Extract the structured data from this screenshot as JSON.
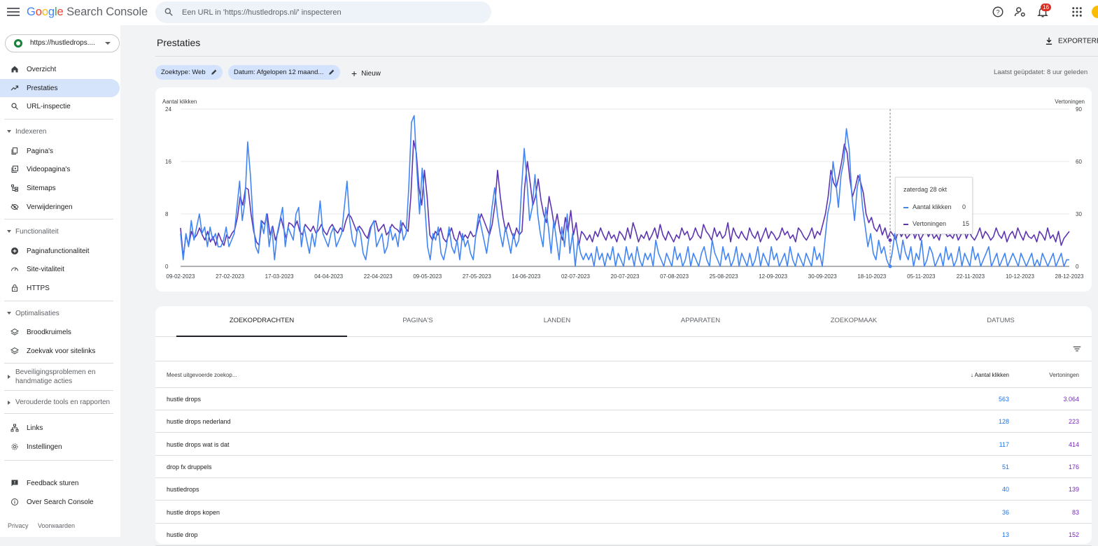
{
  "header": {
    "logo_google": "Google",
    "logo_product": "Search Console",
    "search_placeholder": "Een URL in 'https://hustledrops.nl/' inspecteren",
    "notification_count": "16"
  },
  "sidebar": {
    "property": "https://hustledrops....",
    "top_items": [
      {
        "label": "Overzicht",
        "icon": "home-icon"
      },
      {
        "label": "Prestaties",
        "icon": "trending-up-icon",
        "active": true
      },
      {
        "label": "URL-inspectie",
        "icon": "search-icon"
      }
    ],
    "sections": [
      {
        "title": "Indexeren",
        "items": [
          "Pagina's",
          "Videopagina's",
          "Sitemaps",
          "Verwijderingen"
        ]
      },
      {
        "title": "Functionaliteit",
        "items": [
          "Paginafunctionaliteit",
          "Site-vitaliteit",
          "HTTPS"
        ]
      },
      {
        "title": "Optimalisaties",
        "items": [
          "Broodkruimels",
          "Zoekvak voor sitelinks"
        ]
      }
    ],
    "collapsed_sections": [
      "Beveiligingsproblemen en handmatige acties",
      "Verouderde tools en rapporten"
    ],
    "bottom_items": [
      "Links",
      "Instellingen"
    ],
    "footer_items": [
      "Feedback sturen",
      "Over Search Console"
    ],
    "footer_links": [
      "Privacy",
      "Voorwaarden"
    ]
  },
  "main": {
    "title": "Prestaties",
    "export_label": "EXPORTEREN",
    "filters": [
      "Zoektype: Web",
      "Datum: Afgelopen 12 maand..."
    ],
    "new_label": "Nieuw",
    "updated": "Laatst geüpdatet: 8 uur geleden"
  },
  "chart_data": {
    "type": "line",
    "left_axis_label": "Aantal klikken",
    "right_axis_label": "Vertoningen",
    "left_ticks": [
      0,
      8,
      16,
      24
    ],
    "right_ticks": [
      0,
      30,
      60,
      90
    ],
    "ylim_left": [
      0,
      24
    ],
    "ylim_right": [
      0,
      90
    ],
    "x_tick_labels": [
      "09-02-2023",
      "27-02-2023",
      "17-03-2023",
      "04-04-2023",
      "22-04-2023",
      "09-05-2023",
      "27-05-2023",
      "14-06-2023",
      "02-07-2023",
      "20-07-2023",
      "07-08-2023",
      "25-08-2023",
      "12-09-2023",
      "30-09-2023",
      "18-10-2023",
      "05-11-2023",
      "22-11-2023",
      "10-12-2023",
      "28-12-2023"
    ],
    "series": [
      {
        "name": "Aantal klikken",
        "axis": "left",
        "color": "#4285f4",
        "values": [
          5,
          1,
          5,
          3,
          7,
          4,
          6,
          8,
          5,
          6,
          3,
          6,
          4,
          5,
          3,
          3,
          4,
          6,
          3,
          4,
          5,
          9,
          13,
          7,
          10,
          19,
          14,
          7,
          3,
          2,
          7,
          5,
          8,
          3,
          6,
          1,
          5,
          7,
          9,
          3,
          6,
          5,
          4,
          8,
          9,
          3,
          6,
          4,
          2,
          5,
          3,
          6,
          10,
          5,
          4,
          3,
          5,
          6,
          3,
          4,
          5,
          9,
          13,
          7,
          4,
          3,
          6,
          5,
          2,
          1,
          4,
          6,
          7,
          3,
          4,
          5,
          2,
          3,
          6,
          4,
          5,
          3,
          7,
          4,
          5,
          12,
          22,
          23,
          15,
          8,
          15,
          9,
          3,
          1,
          5,
          4,
          6,
          2,
          1,
          3,
          6,
          3,
          2,
          4,
          1,
          5,
          3,
          4,
          2,
          1,
          5,
          8,
          6,
          4,
          2,
          5,
          9,
          12,
          8,
          5,
          3,
          6,
          4,
          2,
          5,
          3,
          4,
          12,
          18,
          13,
          7,
          9,
          14,
          8,
          5,
          3,
          9,
          6,
          2,
          7,
          4,
          1,
          6,
          3,
          8,
          2,
          5,
          0,
          4,
          2,
          1,
          2,
          1,
          2,
          0,
          3,
          1,
          2,
          0,
          2,
          1,
          3,
          0,
          2,
          1,
          0,
          3,
          1,
          2,
          0,
          3,
          1,
          0,
          2,
          1,
          2,
          0,
          4,
          2,
          1,
          0,
          2,
          1,
          0,
          3,
          1,
          2,
          0,
          1,
          3,
          0,
          2,
          1,
          0,
          2,
          3,
          1,
          0,
          4,
          2,
          1,
          0,
          3,
          1,
          2,
          0,
          1,
          3,
          0,
          2,
          1,
          0,
          2,
          0,
          1,
          3,
          0,
          2,
          1,
          0,
          3,
          1,
          2,
          0,
          1,
          2,
          0,
          3,
          1,
          0,
          2,
          1,
          0,
          2,
          1,
          0,
          3,
          1,
          2,
          0,
          4,
          8,
          10,
          16,
          13,
          9,
          14,
          16,
          21,
          18,
          11,
          7,
          12,
          14,
          9,
          6,
          3,
          5,
          2,
          1,
          4,
          2,
          3,
          1,
          0,
          2,
          5,
          3,
          1,
          4,
          2,
          1,
          3,
          0,
          2,
          1,
          4,
          0,
          1,
          3,
          2,
          0,
          1,
          2,
          0,
          3,
          1,
          2,
          0,
          1,
          3,
          0,
          2,
          1,
          0,
          3,
          1,
          2,
          0,
          1,
          2,
          3,
          0,
          1,
          2,
          0,
          1,
          2,
          0,
          1,
          2,
          1,
          0,
          2,
          1,
          0,
          1,
          2,
          0,
          1,
          0,
          2,
          1,
          0,
          1,
          2,
          0,
          1,
          2,
          0,
          1,
          1
        ]
      },
      {
        "name": "Vertoningen",
        "axis": "right",
        "color": "#5e35b1",
        "values": [
          22,
          5,
          18,
          12,
          20,
          16,
          18,
          22,
          18,
          15,
          20,
          14,
          17,
          12,
          19,
          15,
          12,
          18,
          16,
          19,
          21,
          28,
          40,
          35,
          45,
          44,
          30,
          20,
          14,
          12,
          26,
          24,
          30,
          18,
          23,
          15,
          20,
          28,
          22,
          16,
          25,
          24,
          22,
          26,
          20,
          18,
          24,
          22,
          20,
          23,
          19,
          21,
          24,
          20,
          18,
          22,
          24,
          21,
          19,
          22,
          20,
          26,
          30,
          28,
          24,
          20,
          23,
          21,
          18,
          16,
          22,
          25,
          26,
          20,
          22,
          24,
          18,
          20,
          24,
          22,
          21,
          19,
          25,
          22,
          20,
          40,
          72,
          65,
          45,
          35,
          55,
          40,
          18,
          15,
          20,
          18,
          22,
          16,
          14,
          18,
          22,
          16,
          14,
          20,
          15,
          18,
          16,
          20,
          17,
          18,
          25,
          30,
          26,
          22,
          18,
          24,
          35,
          55,
          40,
          28,
          20,
          25,
          20,
          16,
          22,
          18,
          20,
          45,
          60,
          48,
          35,
          40,
          50,
          38,
          30,
          25,
          40,
          32,
          22,
          30,
          20,
          15,
          28,
          20,
          32,
          18,
          25,
          12,
          20,
          18,
          15,
          18,
          14,
          20,
          17,
          22,
          18,
          15,
          20,
          16,
          18,
          14,
          20,
          18,
          15,
          22,
          16,
          25,
          20,
          14,
          18,
          16,
          20,
          15,
          18,
          22,
          16,
          24,
          18,
          15,
          20,
          17,
          14,
          18,
          16,
          22,
          18,
          20,
          15,
          17,
          22,
          18,
          16,
          24,
          20,
          18,
          15,
          22,
          17,
          20,
          16,
          18,
          25,
          14,
          22,
          18,
          16,
          20,
          17,
          15,
          22,
          18,
          16,
          20,
          14,
          18,
          22,
          16,
          20,
          18,
          15,
          17,
          22,
          18,
          20,
          16,
          18,
          14,
          22,
          20,
          17,
          15,
          18,
          22,
          16,
          20,
          18,
          24,
          30,
          40,
          55,
          48,
          45,
          52,
          60,
          70,
          65,
          50,
          40,
          45,
          52,
          48,
          42,
          30,
          25,
          28,
          22,
          20,
          24,
          18,
          22,
          16,
          20,
          18,
          15,
          22,
          17,
          20,
          16,
          18,
          22,
          16,
          20,
          15,
          18,
          22,
          17,
          20,
          16,
          18,
          15,
          22,
          20,
          17,
          18,
          16,
          20,
          15,
          18,
          22,
          16,
          20,
          17,
          15,
          18,
          22,
          16,
          20,
          18,
          15,
          17,
          22,
          18,
          16,
          20,
          14,
          18,
          20,
          16,
          22,
          18,
          15,
          20,
          17,
          16,
          18,
          14,
          20,
          18,
          15,
          22,
          16,
          18,
          14,
          20,
          12,
          16,
          18,
          20
        ]
      }
    ],
    "tooltip": {
      "date": "zaterdag 28 okt",
      "rows": [
        {
          "label": "Aantal klikken",
          "value": "0",
          "color": "#4285f4"
        },
        {
          "label": "Vertoningen",
          "value": "15",
          "color": "#5e35b1"
        }
      ]
    }
  },
  "table": {
    "tabs": [
      "ZOEKOPDRACHTEN",
      "PAGINA'S",
      "LANDEN",
      "APPARATEN",
      "ZOEKOPMAAK",
      "DATUMS"
    ],
    "active_tab": 0,
    "columns": [
      "Meest uitgevoerde zoekop...",
      "Aantal klikken",
      "Vertoningen"
    ],
    "rows": [
      {
        "query": "hustle drops",
        "clicks": "563",
        "impressions": "3.064"
      },
      {
        "query": "hustle drops nederland",
        "clicks": "128",
        "impressions": "223"
      },
      {
        "query": "hustle drops wat is dat",
        "clicks": "117",
        "impressions": "414"
      },
      {
        "query": "drop fx druppels",
        "clicks": "51",
        "impressions": "176"
      },
      {
        "query": "hustledrops",
        "clicks": "40",
        "impressions": "139"
      },
      {
        "query": "hustle drops kopen",
        "clicks": "36",
        "impressions": "83"
      },
      {
        "query": "hustle drop",
        "clicks": "13",
        "impressions": "152"
      }
    ]
  }
}
